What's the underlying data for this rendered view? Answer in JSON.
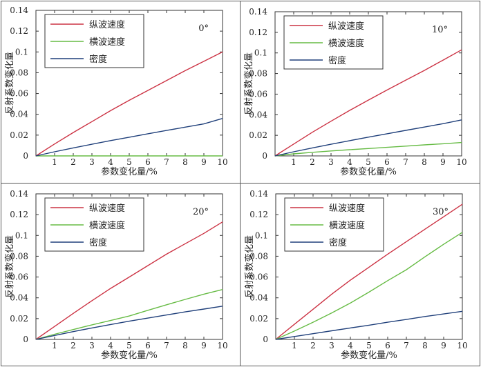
{
  "colors": {
    "vp": "#cc3344",
    "vs": "#66bb44",
    "rho": "#1f3f7a"
  },
  "chart_data": [
    {
      "type": "line",
      "angle_label": "0°",
      "xlabel": "参数变化量/%",
      "ylabel": "反射系数变化量",
      "xlim": [
        0,
        10
      ],
      "ylim": [
        0,
        0.14
      ],
      "x_ticks": [
        "1",
        "2",
        "3",
        "4",
        "5",
        "6",
        "7",
        "8",
        "9",
        "10"
      ],
      "y_ticks": [
        "0",
        "0.02",
        "0.04",
        "0.06",
        "0.08",
        "0.1",
        "0.12",
        "0.14"
      ],
      "legend": [
        "纵波速度",
        "横波速度",
        "密度"
      ],
      "legend_position": "top-left",
      "series": [
        {
          "name": "纵波速度",
          "color_key": "vp",
          "x": [
            0,
            1,
            2,
            3,
            4,
            5,
            6,
            7,
            8,
            9,
            10
          ],
          "y": [
            0,
            0.0115,
            0.0225,
            0.033,
            0.0435,
            0.0535,
            0.063,
            0.0725,
            0.082,
            0.091,
            0.1
          ]
        },
        {
          "name": "横波速度",
          "color_key": "vs",
          "x": [
            0,
            10
          ],
          "y": [
            0,
            0
          ]
        },
        {
          "name": "密度",
          "color_key": "rho",
          "x": [
            0,
            1,
            2,
            3,
            4,
            5,
            6,
            7,
            8,
            9,
            10
          ],
          "y": [
            0,
            0.004,
            0.0077,
            0.0112,
            0.0147,
            0.018,
            0.0213,
            0.0245,
            0.0277,
            0.0308,
            0.036
          ]
        }
      ]
    },
    {
      "type": "line",
      "angle_label": "10°",
      "xlabel": "参数变化量/%",
      "ylabel": "反射系数变化量",
      "xlim": [
        0,
        10
      ],
      "ylim": [
        0,
        0.14
      ],
      "x_ticks": [
        "1",
        "2",
        "3",
        "4",
        "5",
        "6",
        "7",
        "8",
        "9",
        "10"
      ],
      "y_ticks": [
        "0",
        "0.02",
        "0.04",
        "0.06",
        "0.08",
        "0.1",
        "0.12",
        "0.14"
      ],
      "legend": [
        "纵波速度",
        "横波速度",
        "密度"
      ],
      "legend_position": "top-left",
      "series": [
        {
          "name": "纵波速度",
          "color_key": "vp",
          "x": [
            0,
            1,
            2,
            3,
            4,
            5,
            6,
            7,
            8,
            9,
            10
          ],
          "y": [
            0,
            0.0115,
            0.023,
            0.0337,
            0.0442,
            0.0542,
            0.064,
            0.0735,
            0.083,
            0.093,
            0.103
          ]
        },
        {
          "name": "横波速度",
          "color_key": "vs",
          "x": [
            0,
            1,
            2,
            3,
            4,
            5,
            6,
            7,
            8,
            9,
            10
          ],
          "y": [
            0,
            0.002,
            0.0035,
            0.0048,
            0.006,
            0.0072,
            0.0083,
            0.0095,
            0.0107,
            0.0118,
            0.013
          ]
        },
        {
          "name": "密度",
          "color_key": "rho",
          "x": [
            0,
            1,
            2,
            3,
            4,
            5,
            6,
            7,
            8,
            9,
            10
          ],
          "y": [
            0,
            0.004,
            0.0078,
            0.0113,
            0.0148,
            0.0182,
            0.0215,
            0.0248,
            0.028,
            0.0313,
            0.035
          ]
        }
      ]
    },
    {
      "type": "line",
      "angle_label": "20°",
      "xlabel": "参数变化量/%",
      "ylabel": "反射系数变化量",
      "xlim": [
        0,
        10
      ],
      "ylim": [
        0,
        0.14
      ],
      "x_ticks": [
        "1",
        "2",
        "3",
        "4",
        "5",
        "6",
        "7",
        "8",
        "9",
        "10"
      ],
      "y_ticks": [
        "0",
        "0.02",
        "0.04",
        "0.06",
        "0.08",
        "0.1",
        "0.12",
        "0.14"
      ],
      "legend": [
        "纵波速度",
        "横波速度",
        "密度"
      ],
      "legend_position": "top-left",
      "series": [
        {
          "name": "纵波速度",
          "color_key": "vp",
          "x": [
            0,
            1,
            2,
            3,
            4,
            5,
            6,
            7,
            8,
            9,
            10
          ],
          "y": [
            0,
            0.0125,
            0.025,
            0.0372,
            0.049,
            0.06,
            0.071,
            0.082,
            0.092,
            0.102,
            0.113
          ]
        },
        {
          "name": "横波速度",
          "color_key": "vs",
          "x": [
            0,
            1,
            2,
            3,
            4,
            5,
            6,
            7,
            8,
            9,
            10
          ],
          "y": [
            0,
            0.005,
            0.0095,
            0.014,
            0.0182,
            0.0225,
            0.028,
            0.0333,
            0.0385,
            0.0435,
            0.048
          ]
        },
        {
          "name": "密度",
          "color_key": "rho",
          "x": [
            0,
            1,
            2,
            3,
            4,
            5,
            6,
            7,
            8,
            9,
            10
          ],
          "y": [
            0,
            0.0038,
            0.0075,
            0.011,
            0.0143,
            0.0175,
            0.0205,
            0.0235,
            0.0265,
            0.0292,
            0.032
          ]
        }
      ]
    },
    {
      "type": "line",
      "angle_label": "30°",
      "xlabel": "参数变化量/%",
      "ylabel": "反射系数变化量",
      "xlim": [
        0,
        10
      ],
      "ylim": [
        0,
        0.14
      ],
      "x_ticks": [
        "1",
        "2",
        "3",
        "4",
        "5",
        "6",
        "7",
        "8",
        "9",
        "10"
      ],
      "y_ticks": [
        "0",
        "0.02",
        "0.04",
        "0.06",
        "0.08",
        "0.1",
        "0.12",
        "0.14"
      ],
      "legend": [
        "纵波速度",
        "横波速度",
        "密度"
      ],
      "legend_position": "top-left",
      "series": [
        {
          "name": "纵波速度",
          "color_key": "vp",
          "x": [
            0,
            1,
            2,
            3,
            4,
            5,
            6,
            7,
            8,
            9,
            10
          ],
          "y": [
            0,
            0.0145,
            0.029,
            0.0435,
            0.057,
            0.0695,
            0.082,
            0.094,
            0.106,
            0.118,
            0.13
          ]
        },
        {
          "name": "横波速度",
          "color_key": "vs",
          "x": [
            0,
            1,
            2,
            3,
            4,
            5,
            6,
            7,
            8,
            9,
            10
          ],
          "y": [
            0,
            0.008,
            0.0165,
            0.0255,
            0.035,
            0.0455,
            0.0565,
            0.067,
            0.0795,
            0.0915,
            0.103
          ]
        },
        {
          "name": "密度",
          "color_key": "rho",
          "x": [
            0,
            1,
            2,
            3,
            4,
            5,
            6,
            7,
            8,
            9,
            10
          ],
          "y": [
            0,
            0.0028,
            0.0055,
            0.0083,
            0.011,
            0.0137,
            0.0165,
            0.0192,
            0.022,
            0.0245,
            0.027
          ]
        }
      ]
    }
  ]
}
